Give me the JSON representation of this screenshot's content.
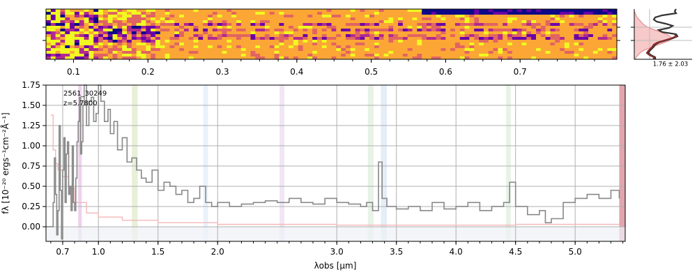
{
  "chart_data": [
    {
      "type": "heatmap",
      "xlabel": "",
      "ylabel": "",
      "x_tick_labels": [
        "0.1",
        "0.2",
        "0.3",
        "0.4",
        "0.5",
        "0.6",
        "0.7"
      ],
      "x_tick_values": [
        0.1,
        0.2,
        0.3,
        0.4,
        0.5,
        0.6,
        0.7
      ],
      "xlim": [
        0.063,
        0.83
      ],
      "colormap": [
        "#0d0887",
        "#6a00a8",
        "#b12a90",
        "#e16462",
        "#fca636",
        "#f0f921"
      ],
      "rows": 18,
      "cols": 120
    },
    {
      "type": "line",
      "annotation": "1.76 ± 2.03",
      "hist_color": "#f7c9c9",
      "line_color": "#333333",
      "points_color": "#8b2b2b"
    },
    {
      "type": "line",
      "title": "",
      "xlabel": "λobs [μm]",
      "ylabel": "fλ [10⁻²⁰ ergs⁻¹cm⁻²Å⁻¹]",
      "xlim": [
        0.56,
        5.42
      ],
      "ylim": [
        -0.18,
        1.75
      ],
      "x_ticks": [
        0.7,
        1.0,
        1.5,
        2.0,
        3.0,
        3.5,
        4.0,
        4.5,
        5.0
      ],
      "x_tick_labels": [
        "0.7",
        "1.0",
        "1.5",
        "2.0",
        "3.0",
        "3.5",
        "4.0",
        "4.5",
        "5.0"
      ],
      "y_ticks": [
        0.0,
        0.25,
        0.5,
        0.75,
        1.0,
        1.25,
        1.5,
        1.75
      ],
      "y_tick_labels": [
        "0.00",
        "0.25",
        "0.50",
        "0.75",
        "1.00",
        "1.25",
        "1.50",
        "1.75"
      ],
      "grid": true,
      "annotations": [
        "2561_30249",
        "z=5.7800"
      ],
      "bands": [
        {
          "x0": 0.83,
          "x1": 0.86,
          "color": "#e8c8e8"
        },
        {
          "x0": 1.28,
          "x1": 1.33,
          "color": "#e4ecd0"
        },
        {
          "x0": 1.88,
          "x1": 1.92,
          "color": "#e4eefa"
        },
        {
          "x0": 2.52,
          "x1": 2.56,
          "color": "#ece0f2"
        },
        {
          "x0": 3.26,
          "x1": 3.31,
          "color": "#e2f0e2"
        },
        {
          "x0": 3.37,
          "x1": 3.42,
          "color": "#dde8f6"
        },
        {
          "x0": 4.42,
          "x1": 4.46,
          "color": "#e2f0e2"
        },
        {
          "x0": 5.37,
          "x1": 5.42,
          "color": "#d98f9a"
        }
      ],
      "series": [
        {
          "name": "",
          "color": "#888888",
          "x": [
            0.56,
            0.6,
            0.62,
            0.63,
            0.64,
            0.65,
            0.66,
            0.67,
            0.68,
            0.69,
            0.7,
            0.71,
            0.72,
            0.73,
            0.74,
            0.75,
            0.76,
            0.77,
            0.78,
            0.79,
            0.8,
            0.81,
            0.82,
            0.83,
            0.84,
            0.85,
            0.86,
            0.87,
            0.88,
            0.9,
            0.92,
            0.94,
            0.96,
            0.98,
            1.0,
            1.02,
            1.05,
            1.08,
            1.1,
            1.13,
            1.16,
            1.2,
            1.24,
            1.28,
            1.32,
            1.36,
            1.4,
            1.45,
            1.5,
            1.55,
            1.6,
            1.65,
            1.7,
            1.75,
            1.8,
            1.85,
            1.9,
            1.95,
            2.0,
            2.1,
            2.2,
            2.3,
            2.4,
            2.5,
            2.6,
            2.7,
            2.8,
            2.9,
            3.0,
            3.1,
            3.2,
            3.25,
            3.3,
            3.35,
            3.38,
            3.42,
            3.5,
            3.6,
            3.7,
            3.8,
            3.9,
            4.0,
            4.1,
            4.2,
            4.3,
            4.4,
            4.45,
            4.5,
            4.6,
            4.7,
            4.75,
            4.8,
            4.9,
            5.0,
            5.1,
            5.2,
            5.3,
            5.37
          ],
          "y": [
            0.0,
            0.0,
            0.3,
            0.85,
            0.4,
            -0.1,
            0.2,
            1.25,
            0.45,
            -0.15,
            0.7,
            1.1,
            0.3,
            0.9,
            1.05,
            0.4,
            0.5,
            0.2,
            1.0,
            0.3,
            0.2,
            0.6,
            1.05,
            1.3,
            1.6,
            0.9,
            1.05,
            1.5,
            1.75,
            1.25,
            1.55,
            1.6,
            1.3,
            1.4,
            1.75,
            1.55,
            1.3,
            1.45,
            1.15,
            1.3,
            0.95,
            1.1,
            0.8,
            0.85,
            0.7,
            0.6,
            0.55,
            0.7,
            0.45,
            0.55,
            0.5,
            0.4,
            0.45,
            0.3,
            0.35,
            0.5,
            0.3,
            0.25,
            0.3,
            0.25,
            0.28,
            0.3,
            0.32,
            0.3,
            0.35,
            0.3,
            0.28,
            0.35,
            0.3,
            0.28,
            0.25,
            0.3,
            0.2,
            0.8,
            0.35,
            0.25,
            0.22,
            0.25,
            0.2,
            0.3,
            0.22,
            0.25,
            0.3,
            0.2,
            0.25,
            0.3,
            0.55,
            0.25,
            0.15,
            0.2,
            0.05,
            0.1,
            0.3,
            0.35,
            0.4,
            0.35,
            0.45,
            0.35
          ]
        },
        {
          "name": "",
          "color": "#f4b8b8",
          "x": [
            0.6,
            0.62,
            0.64,
            0.66,
            0.7,
            0.75,
            0.8,
            0.9,
            1.0,
            1.2,
            1.5,
            2.0,
            2.5,
            3.0,
            3.5,
            4.0,
            4.5,
            5.0,
            5.37
          ],
          "y": [
            1.38,
            0.95,
            0.78,
            0.7,
            0.62,
            0.48,
            0.3,
            0.17,
            0.12,
            0.08,
            0.05,
            0.03,
            0.03,
            0.02,
            0.02,
            0.02,
            0.03,
            0.03,
            0.04
          ]
        }
      ]
    }
  ]
}
